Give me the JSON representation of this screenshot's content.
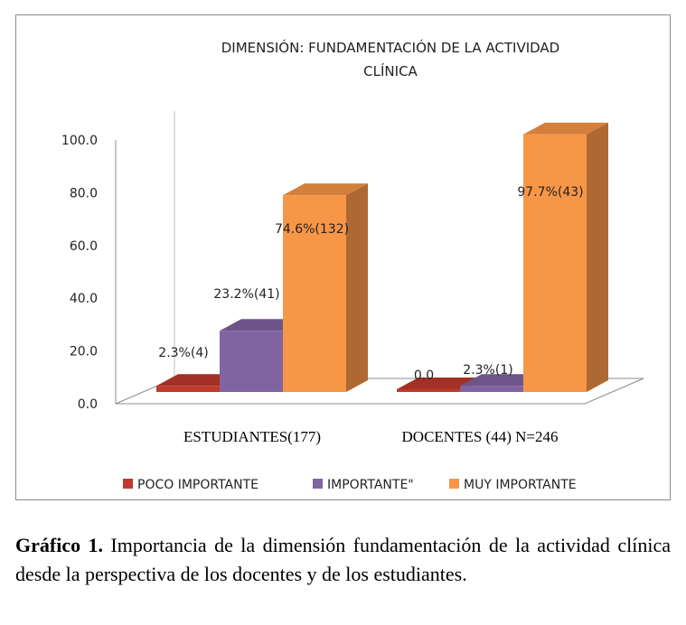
{
  "chart_data": {
    "type": "bar",
    "title": "DIMENSIÓN: FUNDAMENTACIÓN DE LA ACTIVIDAD",
    "title_line2": "CLÍNICA",
    "categories": [
      "ESTUDIANTES(177)",
      "DOCENTES (44)  N=246"
    ],
    "ylim": [
      0,
      100
    ],
    "yticks": [
      "0.0",
      "20.0",
      "40.0",
      "60.0",
      "80.0",
      "100.0"
    ],
    "grid": false,
    "legend_position": "bottom",
    "series": [
      {
        "name": "POCO IMPORTANTE",
        "color": "#c0392b",
        "values": [
          2.3,
          0.0
        ],
        "labels": [
          "2.3%(4)",
          "0.0"
        ]
      },
      {
        "name": "IMPORTANTE\"",
        "color": "#8064a2",
        "values": [
          23.2,
          2.3
        ],
        "labels": [
          "23.2%(41)",
          "2.3%(1)"
        ]
      },
      {
        "name": "MUY IMPORTANTE",
        "color": "#f79646",
        "values": [
          74.6,
          97.7
        ],
        "labels": [
          "74.6%(132)",
          "97.7%(43)"
        ]
      }
    ]
  },
  "caption": {
    "label": "Gráfico 1.",
    "text": " Importancia de la dimensión fundamentación de la actividad clínica desde la perspectiva de los docentes y de los estudiantes."
  }
}
